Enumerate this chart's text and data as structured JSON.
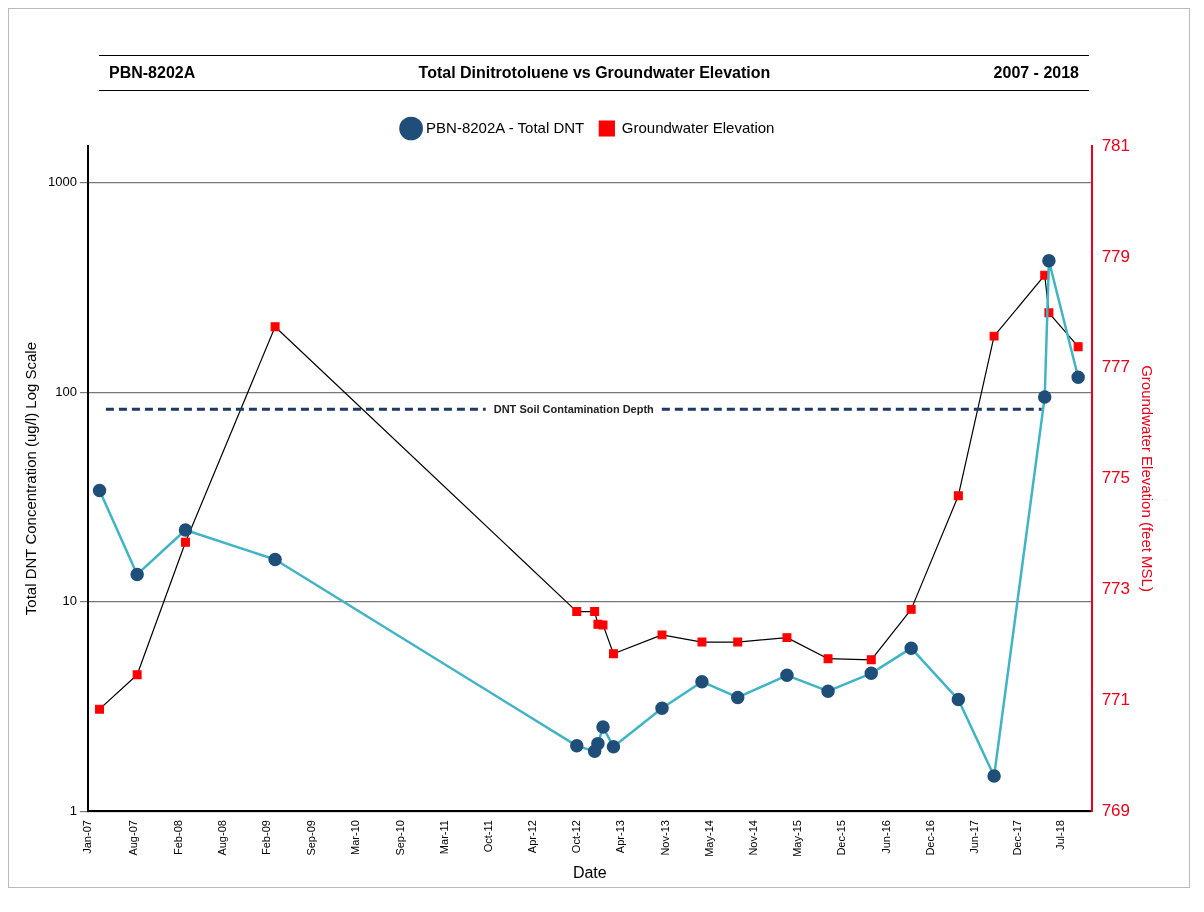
{
  "chart_data": {
    "type": "line",
    "title": "Total Dinitrotoluene vs Groundwater Elevation",
    "annotations": [
      "PBN-8202A",
      "2007 - 2018"
    ],
    "xlabel": "Date",
    "ylabel": "Total DNT Concentration (ug/l) Log Scale",
    "y2label": "Groundwater Elevation (feet MSL)",
    "x": [
      "2007-03-06",
      "2007-08-15",
      "2008-03-10",
      "2009-03-31",
      "2012-10-20",
      "2013-01-05",
      "2013-01-19",
      "2013-02-10",
      "2013-03-27",
      "2013-10-22",
      "2014-04-12",
      "2014-09-13",
      "2015-04-13",
      "2015-10-07",
      "2016-04-10",
      "2016-09-29",
      "2017-04-20",
      "2017-09-21",
      "2018-04-27",
      "2018-05-15",
      "2018-09-18"
    ],
    "series": [
      {
        "name": "PBN-8202A - Total DNT",
        "color": "#40b4c4",
        "colors": [
          "#1f4e79",
          "#1f4e79",
          "#1f4e79",
          "#1f4e79",
          "#1f4e79",
          "#1f4e79",
          "#1f4e79",
          "#1f4e79",
          "#1f4e79",
          "#1f4e79",
          "#1f4e79",
          "#1f4e79",
          "#1f4e79",
          "#1f4e79",
          "#1f4e79",
          "#1f4e79",
          "#1f4e79",
          "#1f4e79",
          "#1f4e79",
          "#1f4e79",
          "#1f4e79"
        ],
        "marker": "circle",
        "values": [
          34,
          13.5,
          22,
          15.9,
          2.05,
          1.93,
          2.1,
          2.52,
          2.03,
          3.1,
          4.15,
          3.49,
          4.45,
          3.74,
          4.55,
          6.0,
          3.41,
          1.47,
          95,
          425,
          118
        ]
      },
      {
        "name": "Groundwater Elevation",
        "axis": "y2",
        "color": "#000000",
        "colors": [
          "#ff0000",
          "#ff0000",
          "#ff0000",
          "#ff0000",
          "#ff0000",
          "#ff0000",
          "#ff0000",
          "#ff0000",
          "#ff0000",
          "#ff0000",
          "#ff0000",
          "#ff0000",
          "#ff0000",
          "#ff0000",
          "#ff0000",
          "#ff0000",
          "#ff0000",
          "#ff0000",
          "#ff0000",
          "#ff0000",
          "#ff0000"
        ],
        "marker": "square",
        "values": [
          770.84,
          771.46,
          773.85,
          777.74,
          772.6,
          772.6,
          772.37,
          772.36,
          771.84,
          772.18,
          772.05,
          772.05,
          772.13,
          771.75,
          771.73,
          772.64,
          774.69,
          777.57,
          778.67,
          777.99,
          777.38
        ]
      }
    ],
    "ref_lines": [
      {
        "axis": "y",
        "value": 83,
        "label": "DNT Soil Contamination Depth",
        "color": "#1f3864",
        "line_style": "dashed"
      }
    ],
    "log": "y",
    "ylim": [
      1,
      1500
    ],
    "yticks": [
      1,
      10,
      100,
      1000
    ],
    "y2lim": [
      769,
      781
    ],
    "y2ticks": [
      769,
      771,
      773,
      775,
      777,
      779,
      781
    ],
    "xlim": [
      "2007-01-15",
      "2018-11-15"
    ],
    "xticks": [
      {
        "value": "2007-01-15",
        "label": "Jan-07"
      },
      {
        "value": "2007-08-01",
        "label": "Aug-07"
      },
      {
        "value": "2008-02-10",
        "label": "Feb-08"
      },
      {
        "value": "2008-08-20",
        "label": "Aug-08"
      },
      {
        "value": "2009-02-25",
        "label": "Feb-09"
      },
      {
        "value": "2009-09-05",
        "label": "Sep-09"
      },
      {
        "value": "2010-03-15",
        "label": "Mar-10"
      },
      {
        "value": "2010-09-22",
        "label": "Sep-10"
      },
      {
        "value": "2011-03-31",
        "label": "Mar-11"
      },
      {
        "value": "2011-10-08",
        "label": "Oct-11"
      },
      {
        "value": "2012-04-15",
        "label": "Apr-12"
      },
      {
        "value": "2012-10-22",
        "label": "Oct-12"
      },
      {
        "value": "2013-04-30",
        "label": "Apr-13"
      },
      {
        "value": "2013-11-07",
        "label": "Nov-13"
      },
      {
        "value": "2014-05-16",
        "label": "May-14"
      },
      {
        "value": "2014-11-23",
        "label": "Nov-14"
      },
      {
        "value": "2015-05-31",
        "label": "May-15"
      },
      {
        "value": "2015-12-08",
        "label": "Dec-15"
      },
      {
        "value": "2016-06-15",
        "label": "Jun-16"
      },
      {
        "value": "2016-12-22",
        "label": "Dec-16"
      },
      {
        "value": "2017-06-30",
        "label": "Jun-17"
      },
      {
        "value": "2017-12-31",
        "label": "Dec-17"
      },
      {
        "value": "2018-07-08",
        "label": "Jul-18"
      }
    ],
    "grid": "y",
    "legend": "top"
  }
}
